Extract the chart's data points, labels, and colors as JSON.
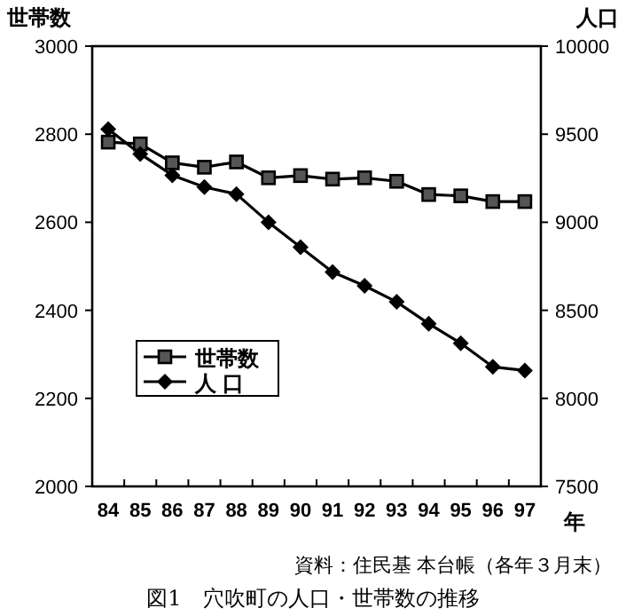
{
  "chart_data": {
    "type": "line",
    "ylabel": "世帯数",
    "y2label": "人口",
    "xlabel": "年",
    "categories": [
      "84",
      "85",
      "86",
      "87",
      "88",
      "89",
      "90",
      "91",
      "92",
      "93",
      "94",
      "95",
      "96",
      "97"
    ],
    "series": [
      {
        "name": "世帯数",
        "color": "#000000",
        "marker": "square",
        "values": [
          2782,
          2778,
          2735,
          2725,
          2737,
          2701,
          2706,
          2698,
          2701,
          2693,
          2663,
          2660,
          2647,
          2647
        ]
      },
      {
        "name": "人 口",
        "color": "#000000",
        "marker": "diamond",
        "axis": "y2",
        "values": [
          9529,
          9388,
          9267,
          9200,
          9160,
          9000,
          8858,
          8717,
          8639,
          8548,
          8424,
          8313,
          8179,
          8158
        ]
      }
    ],
    "ylim": [
      2000,
      3000
    ],
    "yticks": [
      2000,
      2200,
      2400,
      2600,
      2800,
      3000
    ],
    "y2lim": [
      7500,
      10000
    ],
    "y2ticks": [
      7500,
      8000,
      8500,
      9000,
      9500,
      10000
    ],
    "legend": "left",
    "grid": false,
    "line_style": "solid",
    "annotations": [
      "資料：住民基 本台帳（各年３月末）",
      "図1　穴吹町の人口・世帯数の推移"
    ]
  }
}
